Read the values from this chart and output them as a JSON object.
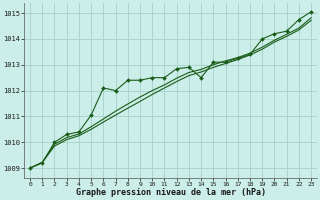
{
  "title": "Graphe pression niveau de la mer (hPa)",
  "background_color": "#cceee8",
  "grid_color": "#aad4ce",
  "line_color": "#1a5c1a",
  "marker_color": "#1a5c1a",
  "xlim": [
    -0.5,
    23.5
  ],
  "ylim": [
    1008.6,
    1015.4
  ],
  "yticks": [
    1009,
    1010,
    1011,
    1012,
    1013,
    1014,
    1015
  ],
  "xticks": [
    0,
    1,
    2,
    3,
    4,
    5,
    6,
    7,
    8,
    9,
    10,
    11,
    12,
    13,
    14,
    15,
    16,
    17,
    18,
    19,
    20,
    21,
    22,
    23
  ],
  "series1_x": [
    0,
    1,
    2,
    3,
    4,
    5,
    6,
    7,
    8,
    9,
    10,
    11,
    12,
    13,
    14,
    15,
    16,
    17,
    18,
    19,
    20,
    21,
    22,
    23
  ],
  "series1_y": [
    1009.0,
    1009.2,
    1010.0,
    1010.3,
    1010.4,
    1011.05,
    1012.1,
    1012.0,
    1012.4,
    1012.4,
    1012.5,
    1012.5,
    1012.85,
    1012.9,
    1012.5,
    1013.1,
    1013.1,
    1013.25,
    1013.4,
    1014.0,
    1014.2,
    1014.3,
    1014.75,
    1015.05
  ],
  "series2_x": [
    0,
    1,
    2,
    3,
    4,
    5,
    6,
    7,
    8,
    9,
    10,
    11,
    12,
    13,
    14,
    15,
    16,
    17,
    18,
    19,
    20,
    21,
    22,
    23
  ],
  "series2_y": [
    1009.0,
    1009.22,
    1009.85,
    1010.1,
    1010.25,
    1010.5,
    1010.78,
    1011.05,
    1011.32,
    1011.58,
    1011.85,
    1012.1,
    1012.35,
    1012.58,
    1012.72,
    1012.9,
    1013.05,
    1013.2,
    1013.38,
    1013.6,
    1013.88,
    1014.1,
    1014.35,
    1014.72
  ],
  "series3_x": [
    0,
    1,
    2,
    3,
    4,
    5,
    6,
    7,
    8,
    9,
    10,
    11,
    12,
    13,
    14,
    15,
    16,
    17,
    18,
    19,
    20,
    21,
    22,
    23
  ],
  "series3_y": [
    1009.0,
    1009.22,
    1009.92,
    1010.18,
    1010.32,
    1010.6,
    1010.9,
    1011.2,
    1011.48,
    1011.75,
    1012.0,
    1012.22,
    1012.48,
    1012.7,
    1012.82,
    1013.0,
    1013.15,
    1013.28,
    1013.45,
    1013.68,
    1013.95,
    1014.18,
    1014.42,
    1014.82
  ]
}
